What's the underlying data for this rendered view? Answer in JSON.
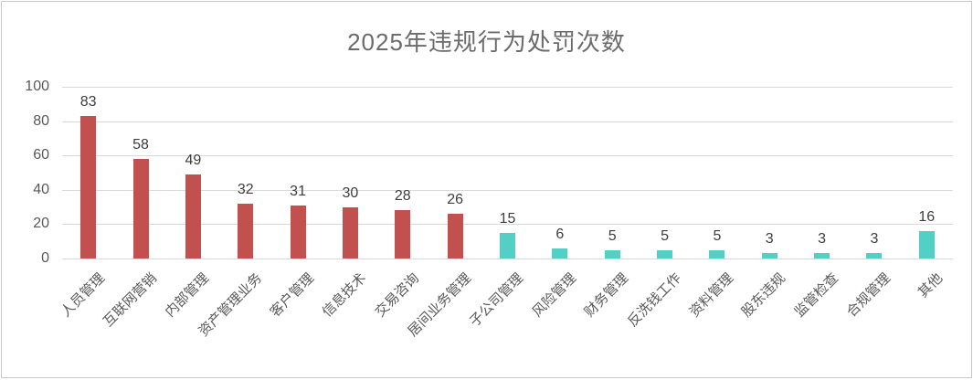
{
  "chart_data": {
    "type": "bar",
    "title": "2025年违规行为处罚次数",
    "categories": [
      "人员管理",
      "互联网营销",
      "内部管理",
      "资产管理业务",
      "客户管理",
      "信息技术",
      "交易咨询",
      "居间业务管理",
      "子公司管理",
      "风险管理",
      "财务管理",
      "反洗钱工作",
      "资料管理",
      "股东违规",
      "监管检查",
      "合规管理",
      "其他"
    ],
    "values": [
      83,
      58,
      49,
      32,
      31,
      30,
      28,
      26,
      15,
      6,
      5,
      5,
      5,
      3,
      3,
      3,
      16
    ],
    "bar_colors": [
      "#c1504e",
      "#c1504e",
      "#c1504e",
      "#c1504e",
      "#c1504e",
      "#c1504e",
      "#c1504e",
      "#c1504e",
      "#53d0c5",
      "#53d0c5",
      "#53d0c5",
      "#53d0c5",
      "#53d0c5",
      "#53d0c5",
      "#53d0c5",
      "#53d0c5",
      "#53d0c5"
    ],
    "xlabel": "",
    "ylabel": "",
    "ylim": [
      0,
      100
    ],
    "yticks": [
      0,
      20,
      40,
      60,
      80,
      100
    ],
    "grid": true,
    "legend": "none",
    "data_labels": true,
    "category_label_rotation_deg": 45
  },
  "palette": {
    "bar_red": "#c1504e",
    "bar_teal": "#53d0c5",
    "gridline": "#d9d9d9",
    "axis_text": "#595959",
    "value_text": "#3d3d3d",
    "title_text": "#6b6b6b",
    "frame_border": "#c8c8c8",
    "background": "#ffffff"
  }
}
